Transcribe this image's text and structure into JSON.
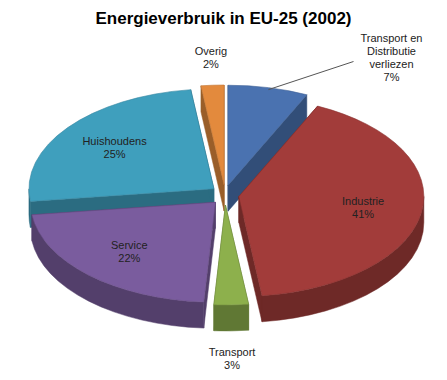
{
  "chart_data": {
    "type": "pie",
    "title": "Energieverbruik in EU-25 (2002)",
    "categories": [
      "Transport en Distributie verliezen",
      "Industrie",
      "Transport",
      "Service",
      "Huishoudens",
      "Overig"
    ],
    "values": [
      7,
      41,
      3,
      22,
      25,
      2
    ],
    "value_labels": [
      "7%",
      "41%",
      "3%",
      "22%",
      "25%",
      "2%"
    ],
    "colors": [
      "#4a72b0",
      "#a23c3a",
      "#8db04c",
      "#7a5c9e",
      "#3f9fbd",
      "#e38a3d"
    ],
    "data_labels": true
  }
}
